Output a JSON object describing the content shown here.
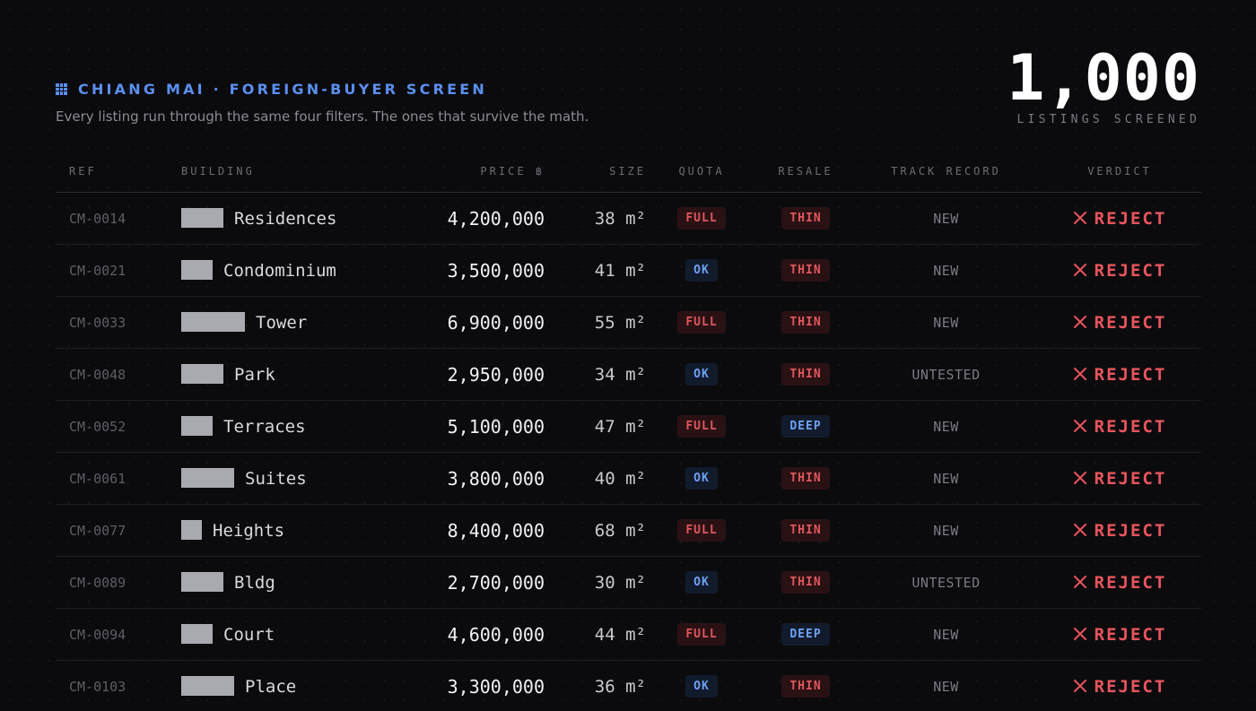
{
  "header": {
    "icon": "grid-icon",
    "title": "CHIANG MAI · FOREIGN-BUYER SCREEN",
    "subtitle": "Every listing run through the same four filters. The ones that survive the math."
  },
  "counter": {
    "value": "1,000",
    "label": "LISTINGS SCREENED"
  },
  "table": {
    "columns": [
      "REF",
      "BUILDING",
      "PRICE ฿",
      "SIZE",
      "QUOTA",
      "RESALE",
      "TRACK RECORD",
      "VERDICT"
    ],
    "rows": [
      {
        "ref": "CM-0014",
        "building": "Residences",
        "price": "4,200,000",
        "size": "38 m²",
        "quota": "FULL",
        "resale": "THIN",
        "track": "NEW",
        "verdict": "REJECT"
      },
      {
        "ref": "CM-0021",
        "building": "Condominium",
        "price": "3,500,000",
        "size": "41 m²",
        "quota": "OK",
        "resale": "THIN",
        "track": "NEW",
        "verdict": "REJECT"
      },
      {
        "ref": "CM-0033",
        "building": "Tower",
        "price": "6,900,000",
        "size": "55 m²",
        "quota": "FULL",
        "resale": "THIN",
        "track": "NEW",
        "verdict": "REJECT"
      },
      {
        "ref": "CM-0048",
        "building": "Park",
        "price": "2,950,000",
        "size": "34 m²",
        "quota": "OK",
        "resale": "THIN",
        "track": "UNTESTED",
        "verdict": "REJECT"
      },
      {
        "ref": "CM-0052",
        "building": "Terraces",
        "price": "5,100,000",
        "size": "47 m²",
        "quota": "FULL",
        "resale": "DEEP",
        "track": "NEW",
        "verdict": "REJECT"
      },
      {
        "ref": "CM-0061",
        "building": "Suites",
        "price": "3,800,000",
        "size": "40 m²",
        "quota": "OK",
        "resale": "THIN",
        "track": "NEW",
        "verdict": "REJECT"
      },
      {
        "ref": "CM-0077",
        "building": "Heights",
        "price": "8,400,000",
        "size": "68 m²",
        "quota": "FULL",
        "resale": "THIN",
        "track": "NEW",
        "verdict": "REJECT"
      },
      {
        "ref": "CM-0089",
        "building": "Bldg",
        "price": "2,700,000",
        "size": "30 m²",
        "quota": "OK",
        "resale": "THIN",
        "track": "UNTESTED",
        "verdict": "REJECT"
      },
      {
        "ref": "CM-0094",
        "building": "Court",
        "price": "4,600,000",
        "size": "44 m²",
        "quota": "FULL",
        "resale": "DEEP",
        "track": "NEW",
        "verdict": "REJECT"
      },
      {
        "ref": "CM-0103",
        "building": "Place",
        "price": "3,300,000",
        "size": "36 m²",
        "quota": "OK",
        "resale": "THIN",
        "track": "NEW",
        "verdict": "REJECT"
      }
    ]
  },
  "colors": {
    "accent": "#5b8ff0",
    "danger": "#e8555c",
    "background": "#0b0b0e"
  },
  "verdict_icon": "x-icon"
}
